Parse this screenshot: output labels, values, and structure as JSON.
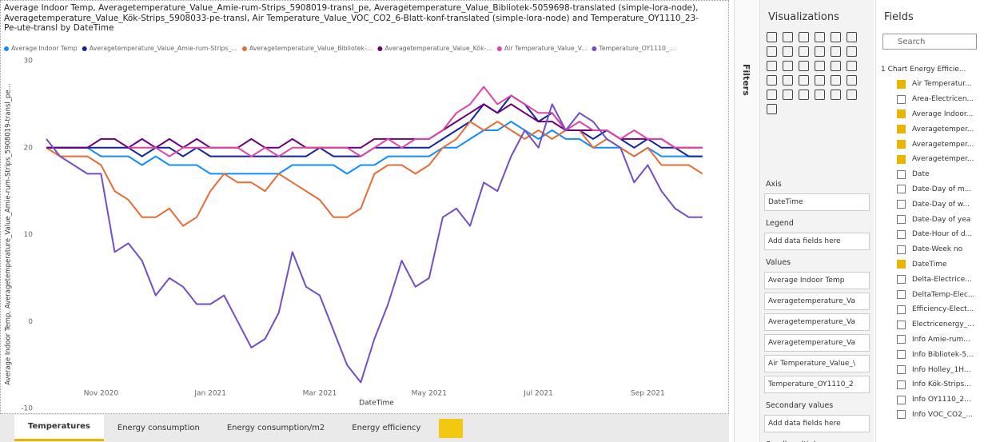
{
  "chart_data": {
    "type": "line",
    "title": "Average Indoor Temp, Averagetemperature_Value_Amie-rum-Strips_5908019-transl_pe, Averagetemperature_Value_Bibliotek-5059698-translated (simple-lora-node), Averagetemperature_Value_Kök-Strips_5908033-pe-transl, Air Temperature_Value_VOC_CO2_6-Blatt-konf-translated (simple-lora-node) and Temperature_OY1110_23-Pe-ute-transl by DateTime",
    "x_label": "DateTime",
    "y_label": "Average Indoor Temp, Averagetemperature_Value_Amie-rum-Strips_5908019-transl_pe...",
    "categories": [
      null,
      null,
      null,
      null,
      "Nov 2020",
      null,
      null,
      null,
      null,
      null,
      null,
      null,
      "Jan 2021",
      null,
      null,
      null,
      null,
      null,
      null,
      null,
      "Mar 2021",
      null,
      null,
      null,
      null,
      null,
      null,
      null,
      "May 2021",
      null,
      null,
      null,
      null,
      null,
      null,
      null,
      "Jul 2021",
      null,
      null,
      null,
      null,
      null,
      null,
      null,
      "Sep 2021",
      null,
      null,
      null,
      null
    ],
    "ylim": [
      -10,
      30
    ],
    "yticks": [
      -10,
      0,
      10,
      20,
      30
    ],
    "grid": false,
    "legend": "top",
    "series": [
      {
        "name": "Average Indoor Temp",
        "color": "#118DFF",
        "values": [
          20,
          20,
          20,
          20,
          19,
          19,
          19,
          18,
          19,
          18,
          18,
          18,
          17,
          17,
          17,
          17,
          17,
          17,
          18,
          18,
          18,
          18,
          17,
          18,
          18,
          19,
          19,
          19,
          19,
          20,
          20,
          21,
          22,
          22,
          23,
          22,
          21,
          22,
          21,
          21,
          20,
          20,
          20,
          19,
          20,
          19,
          19,
          19,
          19
        ]
      },
      {
        "name": "Averagetemperature_Value_Amie-rum-Strips_...",
        "color": "#12239E",
        "values": [
          20,
          20,
          20,
          20,
          20,
          20,
          20,
          19,
          20,
          20,
          19,
          20,
          19,
          19,
          19,
          19,
          19,
          19,
          19,
          19,
          20,
          19,
          19,
          19,
          20,
          20,
          20,
          20,
          20,
          21,
          22,
          23,
          25,
          24,
          26,
          25,
          23,
          24,
          22,
          22,
          21,
          22,
          21,
          20,
          21,
          20,
          20,
          19,
          19
        ]
      },
      {
        "name": "Averagetemperature_Value_Bibliotek-...",
        "color": "#E66C37",
        "values": [
          20,
          19,
          19,
          19,
          18,
          15,
          14,
          12,
          12,
          13,
          11,
          12,
          15,
          17,
          16,
          16,
          15,
          17,
          16,
          15,
          14,
          12,
          12,
          13,
          17,
          18,
          18,
          17,
          18,
          20,
          21,
          23,
          22,
          23,
          22,
          21,
          22,
          21,
          22,
          22,
          20,
          21,
          20,
          19,
          20,
          18,
          18,
          18,
          17
        ]
      },
      {
        "name": "Averagetemperature_Value_Kök-...",
        "color": "#6B007B",
        "values": [
          20,
          20,
          20,
          20,
          21,
          21,
          20,
          21,
          20,
          21,
          20,
          21,
          20,
          20,
          20,
          21,
          20,
          20,
          21,
          20,
          20,
          20,
          20,
          20,
          21,
          21,
          21,
          21,
          21,
          22,
          23,
          24,
          25,
          24,
          25,
          24,
          23,
          23,
          22,
          22,
          22,
          22,
          21,
          21,
          21,
          21,
          20,
          20,
          20
        ]
      },
      {
        "name": "Air Temperature_Value_V...",
        "color": "#E044A7",
        "values": [
          null,
          null,
          null,
          null,
          null,
          null,
          20,
          20,
          20,
          19,
          20,
          20,
          20,
          20,
          20,
          19,
          20,
          19,
          20,
          20,
          20,
          20,
          20,
          19,
          20,
          21,
          20,
          21,
          21,
          22,
          24,
          25,
          27,
          25,
          26,
          25,
          24,
          24,
          22,
          23,
          22,
          22,
          21,
          22,
          21,
          21,
          20,
          20,
          20
        ]
      },
      {
        "name": "Temperature_OY1110_...",
        "color": "#744EC2",
        "values": [
          21,
          19,
          18,
          17,
          17,
          8,
          9,
          7,
          3,
          5,
          4,
          2,
          2,
          3,
          0,
          -3,
          -2,
          1,
          8,
          4,
          3,
          -1,
          -5,
          -7,
          -2,
          2,
          7,
          4,
          5,
          12,
          13,
          11,
          16,
          15,
          19,
          22,
          20,
          25,
          22,
          24,
          23,
          21,
          20,
          16,
          18,
          15,
          13,
          12,
          12
        ]
      }
    ]
  },
  "tabs": [
    "Temperatures",
    "Energy consumption",
    "Energy consumption/m2",
    "Energy efficiency"
  ],
  "filters": {
    "title": "Filters"
  },
  "visualizations": {
    "title": "Visualizations",
    "wells": [
      {
        "label": "Axis",
        "items": [
          "DateTime"
        ]
      },
      {
        "label": "Legend",
        "placeholder": "Add data fields here"
      },
      {
        "label": "Values",
        "items": [
          "Average Indoor Temp",
          "Averagetemperature_Va",
          "Averagetemperature_Va",
          "Averagetemperature_Va",
          "Air Temperature_Value_\\",
          "Temperature_OY1110_2"
        ]
      },
      {
        "label": "Secondary values",
        "placeholder": "Add data fields here"
      },
      {
        "label": "Small multiples"
      }
    ]
  },
  "fields": {
    "title": "Fields",
    "search": "Search",
    "table": "1 Chart Energy Efficie...",
    "items": [
      {
        "label": "Air Temperatur...",
        "checked": true
      },
      {
        "label": "Area-Electricen...",
        "checked": false
      },
      {
        "label": "Average Indoor...",
        "checked": true
      },
      {
        "label": "Averagetemper...",
        "checked": true
      },
      {
        "label": "Averagetemper...",
        "checked": true
      },
      {
        "label": "Averagetemper...",
        "checked": true
      },
      {
        "label": "Date",
        "checked": false
      },
      {
        "label": "Date-Day of m...",
        "checked": false
      },
      {
        "label": "Date-Day of w...",
        "checked": false
      },
      {
        "label": "Date-Day of yea",
        "checked": false
      },
      {
        "label": "Date-Hour of d...",
        "checked": false
      },
      {
        "label": "Date-Week no",
        "checked": false
      },
      {
        "label": "DateTime",
        "checked": true
      },
      {
        "label": "Delta-Electrice...",
        "checked": false
      },
      {
        "label": "DeltaTemp-Elec...",
        "checked": false
      },
      {
        "label": "Efficiency-Elect...",
        "checked": false
      },
      {
        "label": "Electricenergy_...",
        "checked": false
      },
      {
        "label": "Info Amie-rum...",
        "checked": false
      },
      {
        "label": "Info Bibliotek-5...",
        "checked": false
      },
      {
        "label": "Info Holley_1H...",
        "checked": false
      },
      {
        "label": "Info Kök-Strips...",
        "checked": false
      },
      {
        "label": "Info OY1110_2...",
        "checked": false
      },
      {
        "label": "Info VOC_CO2_...",
        "checked": false
      }
    ]
  }
}
